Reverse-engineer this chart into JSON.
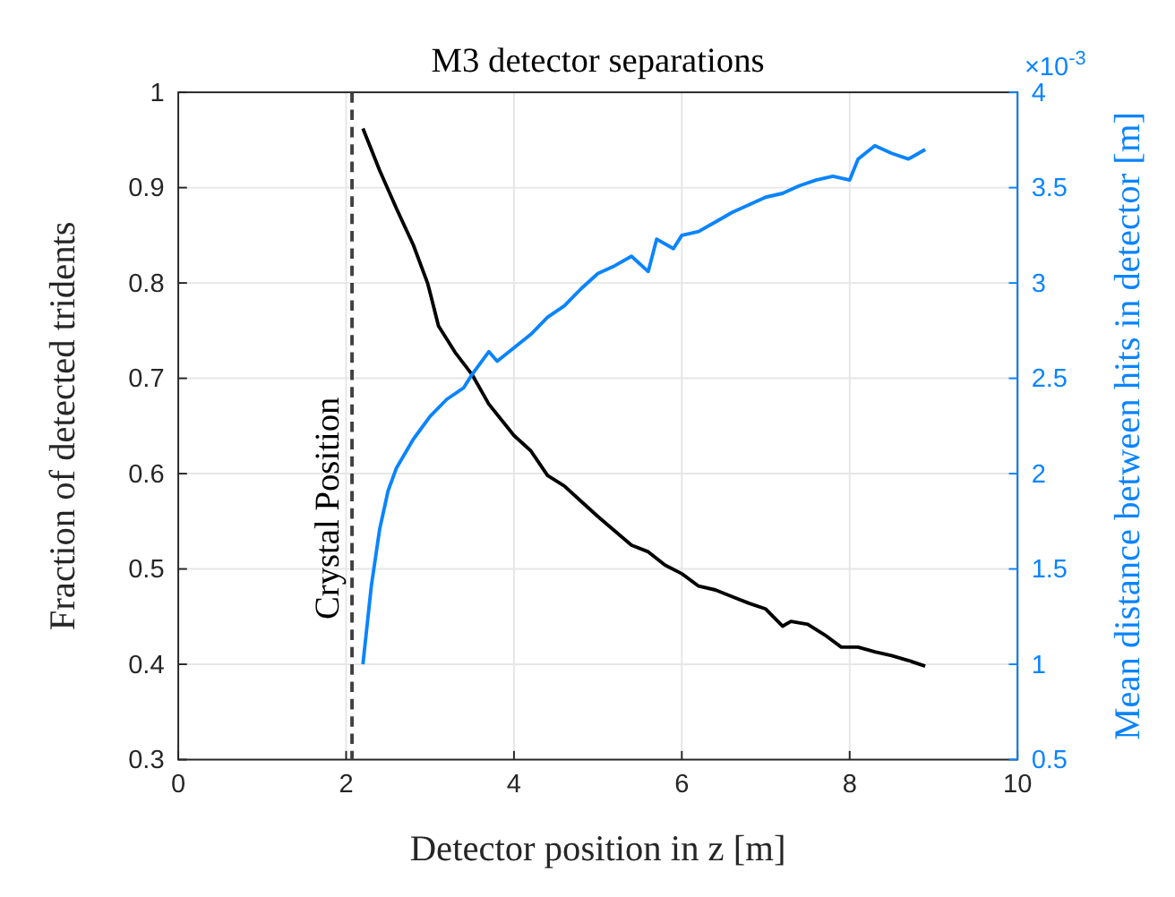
{
  "chart_data": {
    "type": "line",
    "title": "M3 detector separations",
    "xlabel": "Detector position in z [m]",
    "ylabel": "Fraction of detected tridents",
    "y2label": "Mean distance between hits in detector [m]",
    "xlim": [
      0,
      10
    ],
    "xticks": [
      0,
      2,
      4,
      6,
      8,
      10
    ],
    "ylim": [
      0.3,
      1
    ],
    "yticks": [
      0.3,
      0.4,
      0.5,
      0.6,
      0.7,
      0.8,
      0.9,
      1
    ],
    "y2lim": [
      0.5,
      4
    ],
    "y2ticks": [
      0.5,
      1,
      1.5,
      2,
      2.5,
      3,
      3.5,
      4
    ],
    "grid": true,
    "line_style": "solid",
    "marker": "none",
    "annotations": [
      "×10$^{-3}$"
    ],
    "ref_lines": [
      {
        "axis": "x",
        "value": 2.07,
        "label": "Crystal Position",
        "color": "#404040",
        "line_style": "dashed"
      }
    ],
    "series": [
      {
        "color": "#000000",
        "x": [
          2.2,
          2.4,
          2.6,
          2.8,
          2.97,
          3.0,
          3.1,
          3.3,
          3.5,
          3.7,
          3.9,
          4.0,
          4.2,
          4.4,
          4.6,
          4.8,
          5.0,
          5.2,
          5.4,
          5.6,
          5.8,
          6.0,
          6.2,
          6.4,
          6.6,
          6.8,
          7.0,
          7.2,
          7.3,
          7.5,
          7.7,
          7.9,
          8.1,
          8.3,
          8.5,
          8.7,
          8.9
        ],
        "values": [
          0.962,
          0.918,
          0.878,
          0.84,
          0.8,
          0.79,
          0.755,
          0.727,
          0.704,
          0.673,
          0.651,
          0.64,
          0.624,
          0.598,
          0.587,
          0.571,
          0.555,
          0.54,
          0.525,
          0.518,
          0.504,
          0.495,
          0.482,
          0.478,
          0.471,
          0.464,
          0.458,
          0.44,
          0.445,
          0.442,
          0.431,
          0.418,
          0.418,
          0.413,
          0.409,
          0.404,
          0.398
        ]
      },
      {
        "color": "#0a84ff",
        "axis": "y2",
        "x": [
          2.2,
          2.3,
          2.4,
          2.5,
          2.6,
          2.8,
          3.0,
          3.2,
          3.4,
          3.5,
          3.7,
          3.8,
          4.0,
          4.2,
          4.4,
          4.6,
          4.8,
          5.0,
          5.2,
          5.4,
          5.6,
          5.7,
          5.9,
          6.0,
          6.2,
          6.4,
          6.6,
          6.8,
          7.0,
          7.2,
          7.4,
          7.6,
          7.8,
          8.0,
          8.1,
          8.3,
          8.5,
          8.7,
          8.9
        ],
        "values": [
          1.0,
          1.41,
          1.71,
          1.91,
          2.03,
          2.18,
          2.3,
          2.39,
          2.45,
          2.52,
          2.64,
          2.59,
          2.66,
          2.73,
          2.82,
          2.88,
          2.97,
          3.05,
          3.09,
          3.14,
          3.06,
          3.23,
          3.18,
          3.25,
          3.27,
          3.32,
          3.37,
          3.41,
          3.45,
          3.47,
          3.51,
          3.54,
          3.56,
          3.54,
          3.65,
          3.72,
          3.68,
          3.65,
          3.7
        ]
      }
    ]
  }
}
